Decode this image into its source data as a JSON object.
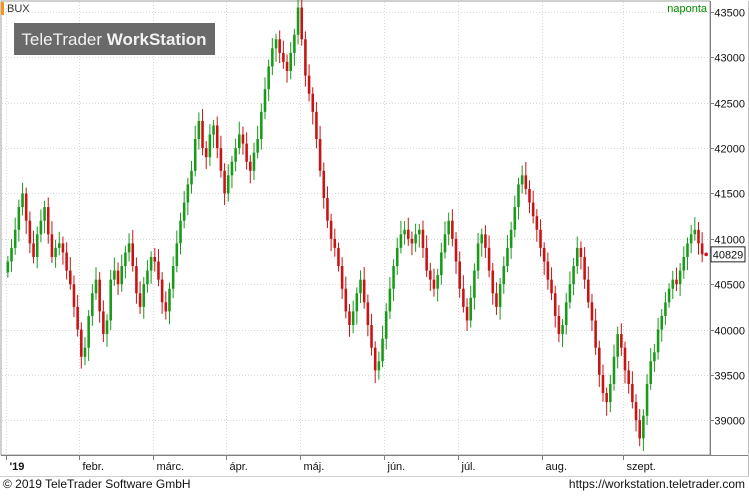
{
  "header": {
    "symbol": "BUX",
    "interval": "naponta",
    "accent_color": "#f7941d",
    "interval_color": "#008a00"
  },
  "watermark": {
    "brand_light": "TeleTrader ",
    "brand_bold": "WorkStation"
  },
  "footer": {
    "copyright": "© 2019 TeleTrader Software GmbH",
    "url": "https://workstation.teletrader.com"
  },
  "chart_data": {
    "type": "candlestick",
    "title": "BUX",
    "interval": "naponta",
    "last_value_label": "40829",
    "up_color": "#1a9a1a",
    "down_color": "#c81414",
    "ylim": [
      38650,
      43600
    ],
    "y_ticks": [
      {
        "label": "43500",
        "value": 43500
      },
      {
        "label": "43000",
        "value": 43000
      },
      {
        "label": "42500",
        "value": 42500
      },
      {
        "label": "42000",
        "value": 42000
      },
      {
        "label": "41500",
        "value": 41500
      },
      {
        "label": "41000",
        "value": 41000
      },
      {
        "label": "40500",
        "value": 40500
      },
      {
        "label": "40000",
        "value": 40000
      },
      {
        "label": "39500",
        "value": 39500
      },
      {
        "label": "39000",
        "value": 39000
      }
    ],
    "x_ticks": [
      {
        "label": "'19",
        "index": 0
      },
      {
        "label": "febr.",
        "index": 20
      },
      {
        "label": "márc.",
        "index": 40
      },
      {
        "label": "ápr.",
        "index": 60
      },
      {
        "label": "máj.",
        "index": 80
      },
      {
        "label": "jún.",
        "index": 103
      },
      {
        "label": "júl.",
        "index": 123
      },
      {
        "label": "aug.",
        "index": 146
      },
      {
        "label": "szept.",
        "index": 168
      }
    ],
    "series_closes": [
      40750,
      40900,
      41100,
      41350,
      41500,
      41200,
      40950,
      40800,
      41050,
      41200,
      41350,
      41050,
      40800,
      40900,
      40950,
      40850,
      40650,
      40500,
      40250,
      40000,
      39700,
      39800,
      40150,
      40400,
      40550,
      40200,
      39950,
      40100,
      40550,
      40650,
      40500,
      40700,
      40850,
      40950,
      40700,
      40400,
      40250,
      40500,
      40650,
      40800,
      40750,
      40550,
      40300,
      40200,
      40450,
      40700,
      40950,
      41200,
      41400,
      41600,
      41750,
      42100,
      42300,
      42000,
      41900,
      42150,
      42250,
      42000,
      41750,
      41500,
      41700,
      41850,
      42000,
      42150,
      42050,
      41850,
      41750,
      41950,
      42100,
      42400,
      42650,
      42900,
      43100,
      43200,
      43050,
      42950,
      42850,
      43050,
      43250,
      43550,
      43200,
      42800,
      42600,
      42400,
      42100,
      41750,
      41450,
      41200,
      41000,
      40900,
      40700,
      40450,
      40200,
      40050,
      40200,
      40400,
      40550,
      40300,
      40050,
      39800,
      39550,
      39650,
      39900,
      40200,
      40450,
      40700,
      40900,
      41050,
      41100,
      41000,
      40950,
      41050,
      41100,
      40900,
      40650,
      40550,
      40450,
      40600,
      40850,
      41050,
      41200,
      41000,
      40750,
      40450,
      40250,
      40100,
      40350,
      40650,
      40950,
      41050,
      40900,
      40650,
      40400,
      40250,
      40500,
      40700,
      40900,
      41100,
      41350,
      41600,
      41700,
      41550,
      41400,
      41250,
      41100,
      40900,
      40750,
      40550,
      40400,
      40150,
      39950,
      40050,
      40300,
      40500,
      40700,
      40900,
      40800,
      40550,
      40300,
      40100,
      39800,
      39500,
      39300,
      39200,
      39400,
      39700,
      39950,
      39800,
      39550,
      39400,
      39200,
      39000,
      38800,
      39050,
      39400,
      39650,
      39750,
      40000,
      40150,
      40300,
      40450,
      40550,
      40500,
      40650,
      40800,
      40950,
      41050,
      41100,
      40950,
      40829
    ]
  }
}
